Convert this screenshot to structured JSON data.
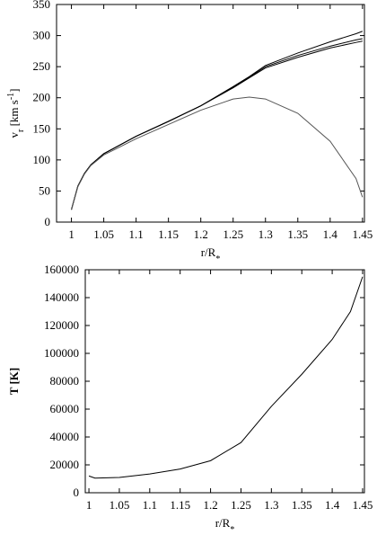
{
  "chart_data": [
    {
      "type": "line",
      "ylabel": [
        {
          "text": "v"
        },
        {
          "text": "r",
          "shift": "sub"
        },
        {
          "text": " [km s"
        },
        {
          "text": "-1",
          "shift": "super"
        },
        {
          "text": "]"
        }
      ],
      "xlabel": [
        {
          "text": "r/R"
        },
        {
          "text": "*",
          "shift": "sub"
        }
      ],
      "x": [
        1,
        1.01,
        1.02,
        1.03,
        1.05,
        1.1,
        1.15,
        1.2,
        1.25,
        1.275,
        1.3,
        1.35,
        1.4,
        1.44,
        1.45
      ],
      "series": [
        {
          "color": "#000",
          "values": [
            20,
            58,
            78,
            92,
            110,
            138,
            162,
            187,
            218,
            234,
            252,
            272,
            290,
            303,
            307
          ]
        },
        {
          "color": "#000",
          "values": [
            20,
            58,
            78,
            92,
            110,
            138,
            162,
            187,
            217,
            233,
            250,
            268,
            283,
            293,
            295
          ]
        },
        {
          "color": "#000",
          "values": [
            20,
            58,
            78,
            92,
            110,
            138,
            162,
            187,
            216,
            232,
            248,
            265,
            280,
            289,
            291
          ]
        },
        {
          "color": "#555",
          "values": [
            20,
            57,
            77,
            91,
            108,
            134,
            157,
            180,
            198,
            201,
            198,
            175,
            130,
            70,
            40
          ]
        }
      ],
      "xlim": [
        0.977,
        1.453
      ],
      "ylim": [
        0,
        350
      ],
      "xticks": [
        1,
        1.05,
        1.1,
        1.15,
        1.2,
        1.25,
        1.3,
        1.35,
        1.4,
        1.45
      ],
      "yticks": [
        0,
        50,
        100,
        150,
        200,
        250,
        300,
        350
      ]
    },
    {
      "type": "line",
      "ylabel": [
        {
          "text": "T [K]"
        }
      ],
      "xlabel": [
        {
          "text": "r/R"
        },
        {
          "text": "*",
          "shift": "sub"
        }
      ],
      "x": [
        1,
        1.01,
        1.05,
        1.1,
        1.15,
        1.2,
        1.25,
        1.3,
        1.35,
        1.4,
        1.43,
        1.45
      ],
      "series": [
        {
          "color": "#000",
          "values": [
            12000,
            10500,
            11000,
            13500,
            17000,
            23000,
            36000,
            62000,
            85000,
            110000,
            130000,
            155000
          ]
        }
      ],
      "xlim": [
        0.994,
        1.453
      ],
      "ylim": [
        0,
        160000
      ],
      "xticks": [
        1,
        1.05,
        1.1,
        1.15,
        1.2,
        1.25,
        1.3,
        1.35,
        1.4,
        1.45
      ],
      "yticks": [
        0,
        20000,
        40000,
        60000,
        80000,
        100000,
        120000,
        140000,
        160000
      ]
    }
  ]
}
